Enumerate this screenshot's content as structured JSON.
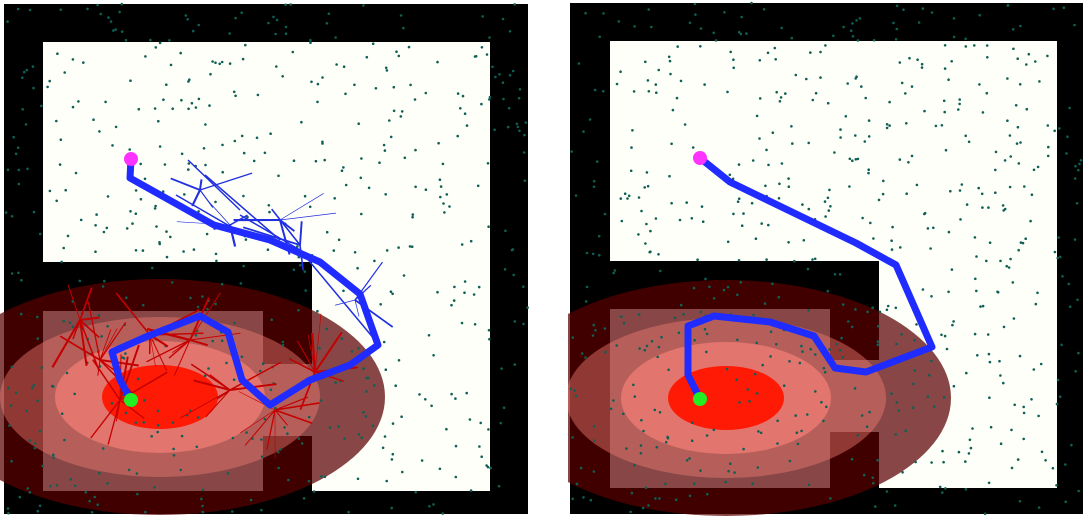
{
  "colors": {
    "wall": "#000000",
    "free": "#fffffa",
    "sample_dot": "#0f5f55",
    "heat_outer": "#5a0000",
    "heat_mid": "#f07c74",
    "heat_inner": "#ff1500",
    "path": "#1f2bff",
    "tree_edge_cold": "#2030e0",
    "tree_edge_hot": "#c40000",
    "start_marker": "#ff33ff",
    "goal_marker": "#22ee22"
  },
  "panels": [
    {
      "id": "left",
      "shows_tree": true
    },
    {
      "id": "right",
      "shows_tree": false
    }
  ]
}
